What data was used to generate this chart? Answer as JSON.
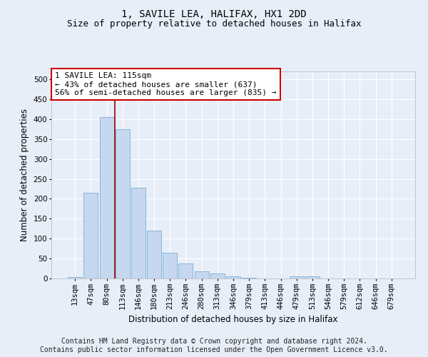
{
  "title": "1, SAVILE LEA, HALIFAX, HX1 2DD",
  "subtitle": "Size of property relative to detached houses in Halifax",
  "xlabel": "Distribution of detached houses by size in Halifax",
  "ylabel": "Number of detached properties",
  "categories": [
    "13sqm",
    "47sqm",
    "80sqm",
    "113sqm",
    "146sqm",
    "180sqm",
    "213sqm",
    "246sqm",
    "280sqm",
    "313sqm",
    "346sqm",
    "379sqm",
    "413sqm",
    "446sqm",
    "479sqm",
    "513sqm",
    "546sqm",
    "579sqm",
    "612sqm",
    "646sqm",
    "679sqm"
  ],
  "values": [
    3,
    215,
    405,
    375,
    228,
    120,
    65,
    37,
    18,
    13,
    5,
    1,
    0,
    0,
    5,
    5,
    0,
    0,
    0,
    0,
    0
  ],
  "bar_color": "#c5d8f0",
  "bar_edge_color": "#7aadd4",
  "property_line_color": "#990000",
  "annotation_text": "1 SAVILE LEA: 115sqm\n← 43% of detached houses are smaller (637)\n56% of semi-detached houses are larger (835) →",
  "annotation_box_facecolor": "#ffffff",
  "annotation_box_edgecolor": "#cc0000",
  "ylim": [
    0,
    520
  ],
  "yticks": [
    0,
    50,
    100,
    150,
    200,
    250,
    300,
    350,
    400,
    450,
    500
  ],
  "background_color": "#e8eef8",
  "grid_color": "#ffffff",
  "footer_line1": "Contains HM Land Registry data © Crown copyright and database right 2024.",
  "footer_line2": "Contains public sector information licensed under the Open Government Licence v3.0.",
  "title_fontsize": 10,
  "subtitle_fontsize": 9,
  "axis_label_fontsize": 8.5,
  "tick_fontsize": 7.5,
  "annotation_fontsize": 8,
  "footer_fontsize": 7
}
